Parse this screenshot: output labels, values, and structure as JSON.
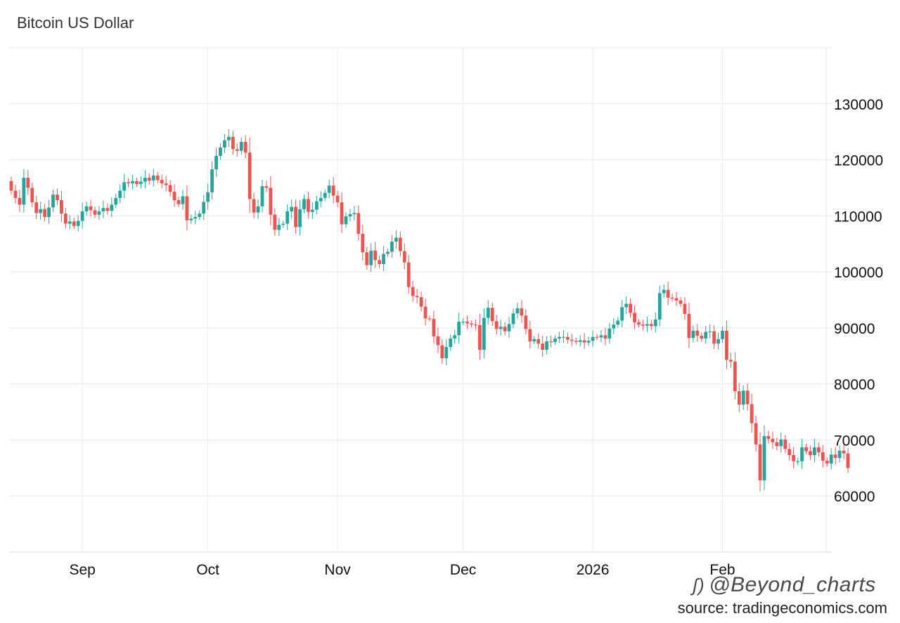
{
  "title": "Bitcoin US Dollar",
  "watermark": "@Beyond_charts",
  "source": "source: tradingeconomics.com",
  "chart_data": {
    "type": "candlestick",
    "title": "Bitcoin US Dollar",
    "ylim": [
      50000,
      140000
    ],
    "y_ticks": [
      60000,
      70000,
      80000,
      90000,
      100000,
      110000,
      120000,
      130000
    ],
    "x_ticks": [
      {
        "label": "Sep",
        "index": 17
      },
      {
        "label": "Oct",
        "index": 47
      },
      {
        "label": "Nov",
        "index": 78
      },
      {
        "label": "Dec",
        "index": 108
      },
      {
        "label": "2026",
        "index": 139
      },
      {
        "label": "Feb",
        "index": 170
      }
    ],
    "grid": true,
    "up_color": "#26a69a",
    "down_color": "#ef5350",
    "close": [
      114500,
      113200,
      112000,
      116800,
      115000,
      112400,
      110500,
      111200,
      109800,
      111500,
      113800,
      112800,
      110400,
      108600,
      109000,
      108200,
      109100,
      110800,
      111700,
      111000,
      110200,
      110800,
      111400,
      110900,
      112000,
      113200,
      114500,
      116000,
      115800,
      116200,
      115700,
      116100,
      116800,
      116300,
      117200,
      116400,
      115800,
      115500,
      114300,
      112800,
      112100,
      113500,
      109200,
      109500,
      109800,
      110400,
      112500,
      114200,
      118300,
      120700,
      122200,
      123500,
      124100,
      121900,
      121600,
      123200,
      121300,
      113000,
      110600,
      111700,
      115300,
      115000,
      110200,
      107500,
      108400,
      108600,
      110800,
      111600,
      108000,
      111200,
      113000,
      110700,
      111100,
      112600,
      113200,
      114100,
      115400,
      113600,
      112400,
      108500,
      109900,
      110300,
      110500,
      106800,
      103500,
      101200,
      103800,
      102100,
      101400,
      103200,
      103600,
      105400,
      106100,
      103700,
      101700,
      97300,
      95700,
      95500,
      93800,
      91700,
      91600,
      88500,
      86900,
      84600,
      86600,
      88100,
      88700,
      91100,
      91100,
      90800,
      90600,
      90500,
      86100,
      91800,
      93600,
      91200,
      89800,
      90200,
      89400,
      90700,
      92600,
      93500,
      92200,
      89800,
      87600,
      88000,
      87200,
      86100,
      87600,
      87500,
      88100,
      88400,
      88400,
      87900,
      87700,
      87500,
      87800,
      87400,
      87700,
      88400,
      88300,
      88700,
      88100,
      89900,
      90600,
      91300,
      93700,
      94300,
      92700,
      91000,
      90600,
      90400,
      90700,
      90300,
      91500,
      96200,
      96800,
      95400,
      95300,
      94900,
      94300,
      92500,
      88200,
      89500,
      88600,
      88100,
      89300,
      89400,
      87200,
      88000,
      89500,
      84300,
      84000,
      78700,
      76300,
      78800,
      76400,
      73000,
      69200,
      62800,
      70700,
      70200,
      69600,
      68900,
      70100,
      68400,
      67300,
      66200,
      66200,
      68700,
      68000,
      67300,
      68700,
      67800,
      66300,
      65800,
      67400,
      66800,
      68100,
      67600,
      65000
    ]
  }
}
